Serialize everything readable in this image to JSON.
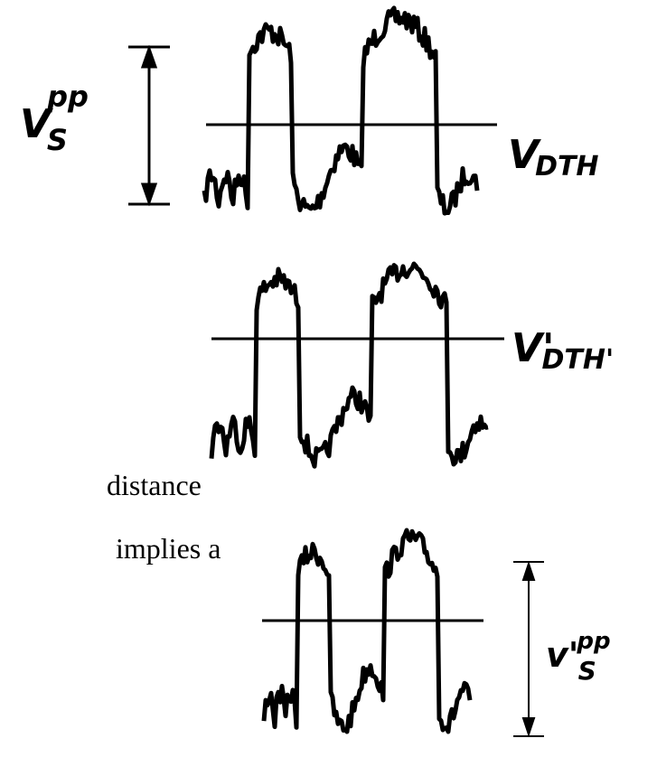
{
  "labels": {
    "vspp": {
      "main": "V",
      "sub": "S",
      "sup": "pp"
    },
    "vdth": {
      "main": "V",
      "sub": "DTH"
    },
    "vdth2": {
      "main": "V'",
      "sub": "DTH'"
    },
    "vspp2": {
      "main": "v'",
      "sub": "S",
      "sup": "pp"
    }
  },
  "text": {
    "line1": "distance",
    "line2": "implies a"
  }
}
